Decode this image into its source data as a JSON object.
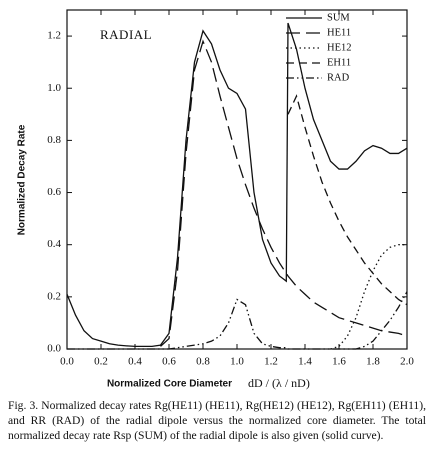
{
  "chart_data": {
    "type": "line",
    "annotation": "RADIAL",
    "ylabel": "Normalized Decay Rate",
    "xlabel": "Normalized Core Diameter",
    "xlabel_formula": "dD / (λ / nD)",
    "caption": "Fig. 3.  Normalized decay rates Rg(HE11) (HE11), Rg(HE12) (HE12), Rg(EH11) (EH11), and RR (RAD) of the radial dipole versus the normalized core diameter.  The total normalized decay rate Rsp (SUM) of the radial dipole is also given (solid curve).",
    "x": [
      0,
      0.05,
      0.1,
      0.15,
      0.2,
      0.25,
      0.3,
      0.35,
      0.4,
      0.45,
      0.5,
      0.55,
      0.6,
      0.65,
      0.7,
      0.75,
      0.8,
      0.85,
      0.9,
      0.95,
      1.0,
      1.05,
      1.1,
      1.15,
      1.2,
      1.25,
      1.29,
      1.3,
      1.35,
      1.4,
      1.45,
      1.5,
      1.55,
      1.6,
      1.65,
      1.7,
      1.75,
      1.8,
      1.85,
      1.9,
      1.95,
      2.0
    ],
    "series": [
      {
        "name": "SUM",
        "color": "#111111",
        "style": "solid",
        "values": [
          0.21,
          0.13,
          0.07,
          0.04,
          0.03,
          0.02,
          0.015,
          0.012,
          0.01,
          0.01,
          0.01,
          0.015,
          0.06,
          0.35,
          0.8,
          1.1,
          1.22,
          1.17,
          1.07,
          1.0,
          0.98,
          0.92,
          0.6,
          0.42,
          0.33,
          0.28,
          0.26,
          1.25,
          1.15,
          1.0,
          0.88,
          0.8,
          0.72,
          0.69,
          0.69,
          0.72,
          0.76,
          0.78,
          0.77,
          0.75,
          0.75,
          0.77
        ]
      },
      {
        "name": "HE11",
        "color": "#111111",
        "style": "long-dash",
        "values": [
          null,
          null,
          null,
          null,
          null,
          null,
          null,
          null,
          null,
          null,
          null,
          0.01,
          0.04,
          0.3,
          0.75,
          1.07,
          1.18,
          1.1,
          0.97,
          0.85,
          0.73,
          0.63,
          0.54,
          0.46,
          0.39,
          0.33,
          0.29,
          0.28,
          0.24,
          0.21,
          0.18,
          0.16,
          0.14,
          0.12,
          0.11,
          0.1,
          0.09,
          0.08,
          0.07,
          0.065,
          0.06,
          0.05
        ]
      },
      {
        "name": "HE12",
        "color": "#111111",
        "style": "dotted",
        "values": [
          null,
          null,
          null,
          null,
          null,
          null,
          null,
          null,
          null,
          null,
          null,
          null,
          null,
          null,
          null,
          null,
          null,
          null,
          null,
          null,
          null,
          null,
          null,
          null,
          null,
          null,
          null,
          null,
          null,
          null,
          null,
          null,
          0,
          0.01,
          0.05,
          0.12,
          0.22,
          0.3,
          0.36,
          0.39,
          0.4,
          0.4
        ]
      },
      {
        "name": "EH11",
        "color": "#111111",
        "style": "dashed",
        "values": [
          null,
          null,
          null,
          null,
          null,
          null,
          null,
          null,
          null,
          null,
          null,
          null,
          null,
          null,
          null,
          null,
          null,
          null,
          null,
          null,
          null,
          null,
          null,
          null,
          null,
          null,
          null,
          0.9,
          0.97,
          0.85,
          0.74,
          0.64,
          0.56,
          0.49,
          0.43,
          0.38,
          0.33,
          0.29,
          0.25,
          0.22,
          0.19,
          0.17
        ]
      },
      {
        "name": "RAD",
        "color": "#111111",
        "style": "dash-dot-dot",
        "values": [
          0,
          0,
          0,
          0,
          0,
          0,
          0,
          0,
          0,
          0,
          0,
          0,
          0,
          0.005,
          0.01,
          0.015,
          0.02,
          0.03,
          0.05,
          0.1,
          0.19,
          0.17,
          0.06,
          0.02,
          0.01,
          0.005,
          0.005,
          0,
          0,
          0,
          0,
          0,
          0,
          0,
          0,
          0,
          0.01,
          0.03,
          0.07,
          0.11,
          0.16,
          0.22
        ]
      }
    ],
    "xlim": [
      0,
      2.0
    ],
    "ylim": [
      0,
      1.3
    ],
    "xticks": [
      {
        "value": 0,
        "label": "0.0"
      },
      {
        "value": 0.2,
        "label": "0.2"
      },
      {
        "value": 0.4,
        "label": "0.4"
      },
      {
        "value": 0.6,
        "label": "0.6"
      },
      {
        "value": 0.8,
        "label": "0.8"
      },
      {
        "value": 1.0,
        "label": "1.0"
      },
      {
        "value": 1.2,
        "label": "1.2"
      },
      {
        "value": 1.4,
        "label": "1.4"
      },
      {
        "value": 1.6,
        "label": "1.6"
      },
      {
        "value": 1.8,
        "label": "1.8"
      },
      {
        "value": 2.0,
        "label": "2.0"
      }
    ],
    "yticks": [
      {
        "value": 0,
        "label": "0.0"
      },
      {
        "value": 0.2,
        "label": "0.2"
      },
      {
        "value": 0.4,
        "label": "0.4"
      },
      {
        "value": 0.6,
        "label": "0.6"
      },
      {
        "value": 0.8,
        "label": "0.8"
      },
      {
        "value": 1.0,
        "label": "1.0"
      },
      {
        "value": 1.2,
        "label": "1.2"
      }
    ],
    "grid": false,
    "legend": "upper right"
  }
}
